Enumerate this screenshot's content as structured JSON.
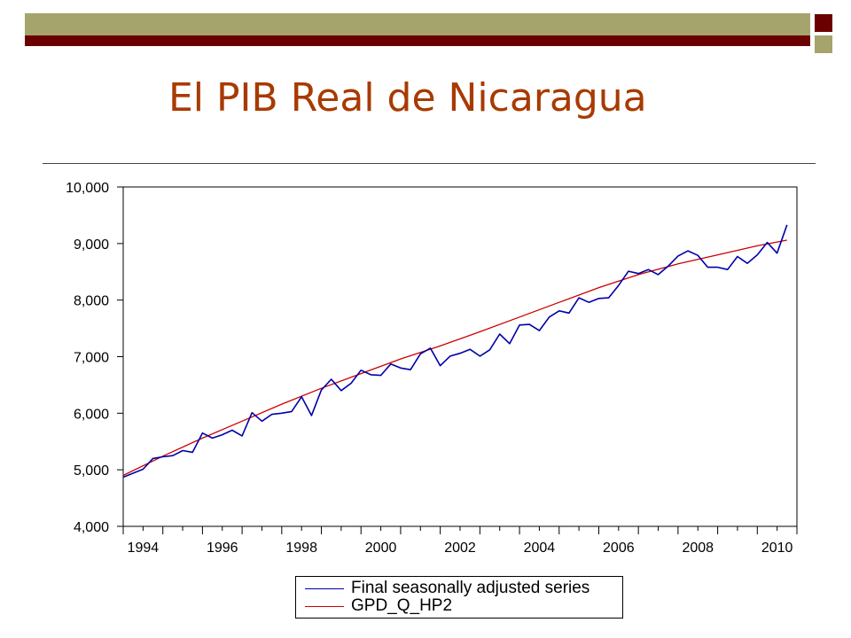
{
  "slide": {
    "title": "El PIB Real de Nicaragua"
  },
  "theme": {
    "band_olive": "#a4a46c",
    "band_maroon": "#6b0000",
    "title_color": "#a83a00"
  },
  "chart_data": {
    "type": "line",
    "title": "",
    "xlabel": "",
    "ylabel": "",
    "ylim": [
      4000,
      10000
    ],
    "xlim": [
      1994.0,
      2011.0
    ],
    "y_ticks": [
      4000,
      5000,
      6000,
      7000,
      8000,
      9000,
      10000
    ],
    "y_tick_labels": [
      "4,000",
      "5,000",
      "6,000",
      "7,000",
      "8,000",
      "9,000",
      "10,000"
    ],
    "x_ticks": [
      1994,
      1996,
      1998,
      2000,
      2002,
      2004,
      2006,
      2008,
      2010
    ],
    "x_tick_labels": [
      "1994",
      "1996",
      "1998",
      "2000",
      "2002",
      "2004",
      "2006",
      "2008",
      "2010"
    ],
    "grid": false,
    "legend_position": "bottom",
    "series": [
      {
        "name": "Final seasonally adjusted series",
        "color": "#0000aa",
        "x": [
          1994.0,
          1994.25,
          1994.5,
          1994.75,
          1995.0,
          1995.25,
          1995.5,
          1995.75,
          1996.0,
          1996.25,
          1996.5,
          1996.75,
          1997.0,
          1997.25,
          1997.5,
          1997.75,
          1998.0,
          1998.25,
          1998.5,
          1998.75,
          1999.0,
          1999.25,
          1999.5,
          1999.75,
          2000.0,
          2000.25,
          2000.5,
          2000.75,
          2001.0,
          2001.25,
          2001.5,
          2001.75,
          2002.0,
          2002.25,
          2002.5,
          2002.75,
          2003.0,
          2003.25,
          2003.5,
          2003.75,
          2004.0,
          2004.25,
          2004.5,
          2004.75,
          2005.0,
          2005.25,
          2005.5,
          2005.75,
          2006.0,
          2006.25,
          2006.5,
          2006.75,
          2007.0,
          2007.25,
          2007.5,
          2007.75,
          2008.0,
          2008.25,
          2008.5,
          2008.75,
          2009.0,
          2009.25,
          2009.5,
          2009.75,
          2010.0,
          2010.25,
          2010.5,
          2010.75
        ],
        "values": [
          4870,
          4940,
          5010,
          5200,
          5230,
          5250,
          5340,
          5310,
          5650,
          5560,
          5620,
          5700,
          5600,
          6010,
          5860,
          5980,
          6000,
          6030,
          6290,
          5960,
          6410,
          6600,
          6400,
          6530,
          6760,
          6680,
          6670,
          6870,
          6800,
          6770,
          7050,
          7150,
          6840,
          7010,
          7060,
          7130,
          7010,
          7120,
          7400,
          7230,
          7560,
          7570,
          7460,
          7700,
          7810,
          7770,
          8040,
          7960,
          8030,
          8040,
          8260,
          8510,
          8470,
          8540,
          8450,
          8600,
          8780,
          8870,
          8790,
          8580,
          8580,
          8540,
          8770,
          8650,
          8800,
          9020,
          8830,
          9330
        ]
      },
      {
        "name": "GPD_Q_HP2",
        "color": "#cc0000",
        "x": [
          1994.0,
          1995.0,
          1996.0,
          1997.0,
          1998.0,
          1999.0,
          2000.0,
          2001.0,
          2002.0,
          2003.0,
          2004.0,
          2005.0,
          2006.0,
          2007.0,
          2008.0,
          2009.0,
          2010.0,
          2010.75
        ],
        "values": [
          4900,
          5240,
          5560,
          5860,
          6160,
          6440,
          6700,
          6960,
          7190,
          7440,
          7700,
          7960,
          8220,
          8450,
          8640,
          8800,
          8960,
          9060
        ]
      }
    ]
  }
}
